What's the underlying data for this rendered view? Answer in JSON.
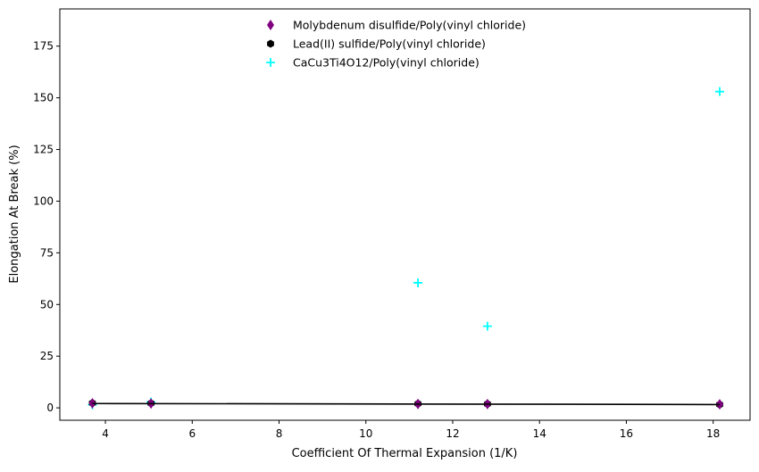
{
  "chart_data": {
    "type": "scatter",
    "title": "",
    "xlabel": "Coefficient Of Thermal Expansion (1/K)",
    "ylabel": "Elongation At Break (%)",
    "xlim": [
      2.95,
      18.85
    ],
    "ylim": [
      -6.0,
      193.0
    ],
    "xticks": [
      4,
      6,
      8,
      10,
      12,
      14,
      16,
      18
    ],
    "yticks": [
      0,
      25,
      50,
      75,
      100,
      125,
      150,
      175
    ],
    "grid": false,
    "legend_position": "top-center",
    "series": [
      {
        "name": "Molybdenum disulfide/Poly(vinyl chloride)",
        "marker": "thin-diamond",
        "color": "#800080",
        "x": [
          3.7,
          5.05,
          11.2,
          12.8,
          18.15
        ],
        "y": [
          2.2,
          2.1,
          1.9,
          1.8,
          1.7
        ]
      },
      {
        "name": "Lead(II) sulfide/Poly(vinyl chloride)",
        "marker": "hexagon",
        "color": "#000000",
        "x": [
          3.7,
          5.05,
          11.2,
          12.8,
          18.15
        ],
        "y": [
          2.3,
          2.2,
          2.0,
          1.9,
          1.6
        ]
      },
      {
        "name": "CaCu3Ti4O12/Poly(vinyl chloride)",
        "marker": "plus",
        "color": "#00ffff",
        "x": [
          3.7,
          5.05,
          11.2,
          12.8,
          18.15
        ],
        "y": [
          1.5,
          2.8,
          60.5,
          39.5,
          153.0
        ]
      }
    ],
    "trendline": {
      "color": "#000000",
      "x": [
        3.7,
        18.15
      ],
      "y": [
        2.1,
        1.6
      ]
    }
  }
}
